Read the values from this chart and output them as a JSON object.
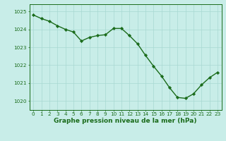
{
  "x": [
    0,
    1,
    2,
    3,
    4,
    5,
    6,
    7,
    8,
    9,
    10,
    11,
    12,
    13,
    14,
    15,
    16,
    17,
    18,
    19,
    20,
    21,
    22,
    23
  ],
  "y": [
    1024.8,
    1024.6,
    1024.45,
    1024.2,
    1024.0,
    1023.85,
    1023.35,
    1023.55,
    1023.65,
    1023.7,
    1024.05,
    1024.05,
    1023.65,
    1023.2,
    1022.55,
    1021.95,
    1021.4,
    1020.75,
    1020.2,
    1020.15,
    1020.4,
    1020.9,
    1021.3,
    1021.6
  ],
  "line_color": "#1a6b1a",
  "marker": "D",
  "marker_size": 2.2,
  "line_width": 1.0,
  "bg_color": "#c8ede8",
  "grid_color": "#a8d8d2",
  "xlabel": "Graphe pression niveau de la mer (hPa)",
  "xlabel_fontsize": 6.5,
  "xlabel_color": "#1a6b1a",
  "tick_color": "#1a6b1a",
  "tick_fontsize": 5.2,
  "ytick_labels": [
    1020,
    1021,
    1022,
    1023,
    1024,
    1025
  ],
  "ylim": [
    1019.5,
    1025.4
  ],
  "xlim": [
    -0.5,
    23.5
  ],
  "xtick_labels": [
    "0",
    "1",
    "2",
    "3",
    "4",
    "5",
    "6",
    "7",
    "8",
    "9",
    "10",
    "11",
    "12",
    "13",
    "14",
    "15",
    "16",
    "17",
    "18",
    "19",
    "20",
    "21",
    "22",
    "23"
  ]
}
